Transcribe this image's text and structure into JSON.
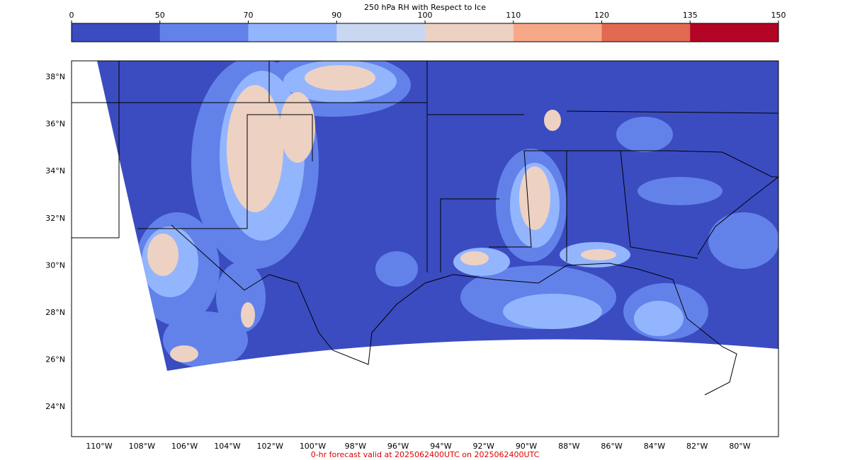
{
  "colorbar": {
    "title": "250 hPa RH with Respect to Ice",
    "ticks": [
      0,
      50,
      70,
      90,
      100,
      110,
      120,
      135,
      150
    ],
    "colors": [
      "#3b4cc0",
      "#6282ea",
      "#93b5fe",
      "#c9d7f0",
      "#edd1c2",
      "#f7a889",
      "#e26952",
      "#b40426"
    ]
  },
  "map": {
    "lat_labels": [
      "38°N",
      "36°N",
      "34°N",
      "32°N",
      "30°N",
      "28°N",
      "26°N",
      "24°N"
    ],
    "lon_labels": [
      "110°W",
      "108°W",
      "106°W",
      "104°W",
      "102°W",
      "100°W",
      "98°W",
      "96°W",
      "94°W",
      "92°W",
      "90°W",
      "88°W",
      "86°W",
      "84°W",
      "82°W",
      "80°W"
    ]
  },
  "footer": "0-hr forecast valid at 2025062400UTC on 2025062400UTC"
}
